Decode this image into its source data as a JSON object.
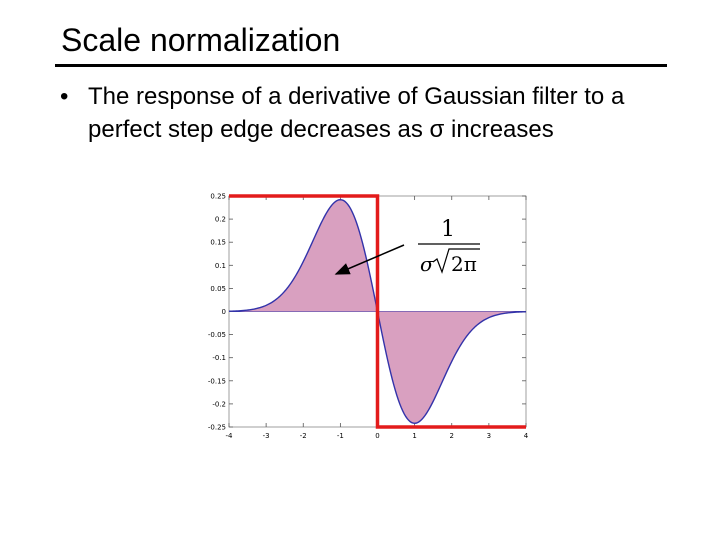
{
  "slide": {
    "title": "Scale normalization",
    "bullet_marker": "•",
    "bullet_text": "The response of a derivative of Gaussian filter to a perfect step edge decreases as σ increases"
  },
  "figure": {
    "formula": {
      "numerator": "1",
      "sigma": "σ",
      "root_content": "2π"
    }
  },
  "chart_data": {
    "type": "area",
    "title": "",
    "xlabel": "",
    "ylabel": "",
    "xlim": [
      -4,
      4
    ],
    "ylim": [
      -0.25,
      0.25
    ],
    "x_ticks": [
      "-4",
      "-3",
      "-2",
      "-1",
      "0",
      "1",
      "2",
      "3",
      "4"
    ],
    "y_ticks": [
      "0.25",
      "0.2",
      "0.15",
      "0.1",
      "0.05",
      "0",
      "-0.05",
      "-0.1",
      "-0.15",
      "-0.2",
      "-0.25"
    ],
    "grid": false,
    "series": [
      {
        "kind": "derivative-of-gaussian",
        "sigma": 1,
        "peak": 0.242,
        "x": [
          -4,
          -3.5,
          -3,
          -2.5,
          -2,
          -1.5,
          -1,
          -0.5,
          0,
          0.5,
          1,
          1.5,
          2,
          2.5,
          3,
          3.5,
          4
        ],
        "values": [
          0.001,
          0.003,
          0.013,
          0.044,
          0.108,
          0.195,
          0.242,
          0.176,
          0,
          -0.176,
          -0.242,
          -0.195,
          -0.108,
          -0.044,
          -0.013,
          -0.003,
          -0.001
        ],
        "color": "#3333aa",
        "fill": "#d9a0c0"
      },
      {
        "kind": "step-edge",
        "x": [
          -4,
          0,
          0,
          4
        ],
        "values": [
          0.25,
          0.25,
          -0.25,
          -0.25
        ],
        "color": "#e31b1b"
      }
    ]
  }
}
